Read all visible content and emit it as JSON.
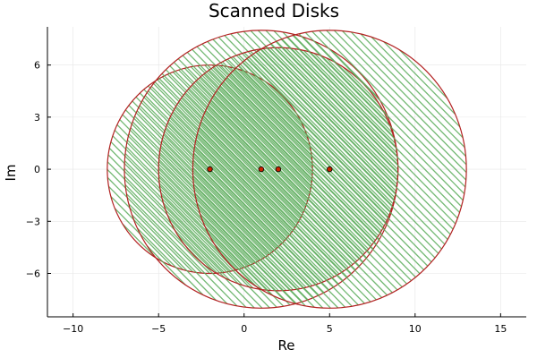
{
  "chart_data": {
    "type": "scatter",
    "title": "Scanned Disks",
    "xlabel": "Re",
    "ylabel": "Im",
    "xlim": [
      -11.5,
      16.5
    ],
    "ylim": [
      -8.5,
      8.2
    ],
    "xticks": [
      -10,
      -5,
      0,
      5,
      10,
      15
    ],
    "yticks": [
      -6,
      -3,
      0,
      3,
      6
    ],
    "xtick_labels": [
      "−10",
      "−5",
      "0",
      "5",
      "10",
      "15"
    ],
    "ytick_labels": [
      "−6",
      "−3",
      "0",
      "3",
      "6"
    ],
    "grid": true,
    "legend": "none",
    "disks": [
      {
        "center": [
          -2,
          0
        ],
        "radius": 6
      },
      {
        "center": [
          1,
          0
        ],
        "radius": 8
      },
      {
        "center": [
          2,
          0
        ],
        "radius": 7
      },
      {
        "center": [
          5,
          0
        ],
        "radius": 8
      }
    ],
    "points": {
      "x": [
        -2,
        1,
        2,
        5
      ],
      "y": [
        0,
        0,
        0,
        0
      ]
    },
    "colors": {
      "disk_outline": "#b22222",
      "hatch": "#5aab5a",
      "point_fill": "#cc2200",
      "point_edge": "#000000"
    }
  }
}
